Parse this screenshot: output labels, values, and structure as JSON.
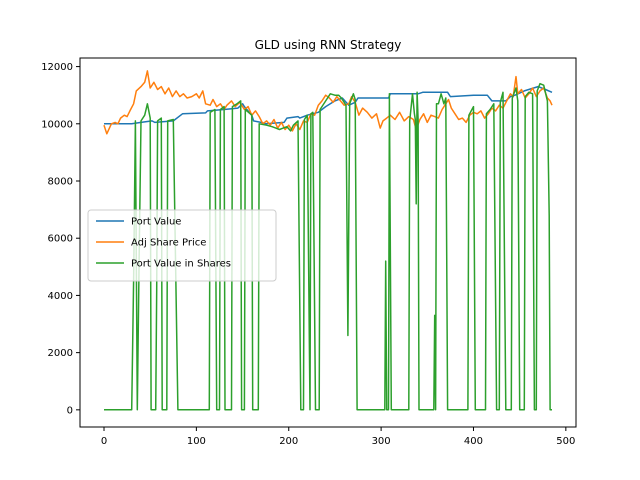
{
  "chart_data": {
    "type": "line",
    "title": "GLD using RNN Strategy",
    "xlabel": "",
    "ylabel": "",
    "xlim": [
      -26,
      511
    ],
    "ylim": [
      -600,
      12300
    ],
    "xticks": [
      0,
      100,
      200,
      300,
      400,
      500
    ],
    "yticks": [
      0,
      2000,
      4000,
      6000,
      8000,
      10000,
      12000
    ],
    "grid": false,
    "legend_placement": "center-left",
    "colors": {
      "port_value": "#1f77b4",
      "adj_share_price": "#ff7f0e",
      "port_value_in_shares": "#2ca02c"
    },
    "series": [
      {
        "name": "Port Value",
        "color": "#1f77b4",
        "points": [
          [
            0,
            10000
          ],
          [
            30,
            10000
          ],
          [
            40,
            10050
          ],
          [
            52,
            10100
          ],
          [
            55,
            10050
          ],
          [
            75,
            10100
          ],
          [
            85,
            10350
          ],
          [
            110,
            10380
          ],
          [
            112,
            10450
          ],
          [
            130,
            10500
          ],
          [
            145,
            10550
          ],
          [
            150,
            10700
          ],
          [
            152,
            10600
          ],
          [
            160,
            10300
          ],
          [
            162,
            10100
          ],
          [
            170,
            10050
          ],
          [
            175,
            10000
          ],
          [
            195,
            10050
          ],
          [
            198,
            10200
          ],
          [
            210,
            10250
          ],
          [
            212,
            10200
          ],
          [
            220,
            10300
          ],
          [
            232,
            10400
          ],
          [
            240,
            10600
          ],
          [
            250,
            10800
          ],
          [
            258,
            10900
          ],
          [
            265,
            10650
          ],
          [
            272,
            10750
          ],
          [
            275,
            10900
          ],
          [
            308,
            10900
          ],
          [
            310,
            11050
          ],
          [
            340,
            11050
          ],
          [
            345,
            11100
          ],
          [
            372,
            11100
          ],
          [
            375,
            10950
          ],
          [
            400,
            11000
          ],
          [
            415,
            11000
          ],
          [
            420,
            10800
          ],
          [
            435,
            10800
          ],
          [
            440,
            10950
          ],
          [
            445,
            11000
          ],
          [
            455,
            11150
          ],
          [
            470,
            11300
          ],
          [
            478,
            11200
          ],
          [
            485,
            11100
          ]
        ]
      },
      {
        "name": "Adj Share Price",
        "color": "#ff7f0e",
        "points": [
          [
            0,
            9950
          ],
          [
            3,
            9650
          ],
          [
            8,
            10000
          ],
          [
            12,
            10050
          ],
          [
            15,
            10000
          ],
          [
            18,
            10200
          ],
          [
            22,
            10300
          ],
          [
            25,
            10250
          ],
          [
            28,
            10450
          ],
          [
            32,
            10700
          ],
          [
            35,
            11150
          ],
          [
            40,
            11300
          ],
          [
            44,
            11450
          ],
          [
            47,
            11850
          ],
          [
            50,
            11250
          ],
          [
            54,
            11450
          ],
          [
            58,
            11200
          ],
          [
            62,
            11300
          ],
          [
            66,
            11050
          ],
          [
            70,
            11250
          ],
          [
            74,
            10950
          ],
          [
            78,
            11150
          ],
          [
            82,
            10950
          ],
          [
            86,
            11050
          ],
          [
            90,
            10900
          ],
          [
            95,
            10950
          ],
          [
            100,
            11050
          ],
          [
            103,
            10900
          ],
          [
            107,
            11150
          ],
          [
            110,
            10700
          ],
          [
            115,
            10650
          ],
          [
            118,
            10850
          ],
          [
            122,
            10600
          ],
          [
            126,
            10700
          ],
          [
            130,
            10500
          ],
          [
            133,
            10650
          ],
          [
            138,
            10800
          ],
          [
            142,
            10600
          ],
          [
            147,
            10750
          ],
          [
            152,
            10500
          ],
          [
            156,
            10600
          ],
          [
            160,
            10300
          ],
          [
            164,
            10450
          ],
          [
            168,
            10250
          ],
          [
            172,
            10000
          ],
          [
            176,
            10100
          ],
          [
            180,
            9950
          ],
          [
            184,
            10150
          ],
          [
            188,
            9850
          ],
          [
            192,
            10050
          ],
          [
            196,
            9800
          ],
          [
            200,
            9950
          ],
          [
            204,
            9750
          ],
          [
            208,
            10000
          ],
          [
            212,
            9800
          ],
          [
            216,
            10100
          ],
          [
            220,
            10050
          ],
          [
            224,
            10350
          ],
          [
            228,
            10300
          ],
          [
            232,
            10650
          ],
          [
            236,
            10800
          ],
          [
            240,
            11000
          ],
          [
            244,
            10900
          ],
          [
            248,
            10750
          ],
          [
            252,
            10950
          ],
          [
            256,
            10800
          ],
          [
            260,
            10650
          ],
          [
            265,
            10700
          ],
          [
            268,
            10950
          ],
          [
            272,
            10750
          ],
          [
            276,
            10300
          ],
          [
            280,
            10550
          ],
          [
            285,
            10400
          ],
          [
            290,
            10200
          ],
          [
            295,
            10350
          ],
          [
            299,
            9850
          ],
          [
            302,
            10100
          ],
          [
            306,
            10200
          ],
          [
            310,
            10300
          ],
          [
            315,
            10150
          ],
          [
            320,
            10400
          ],
          [
            325,
            10100
          ],
          [
            330,
            10250
          ],
          [
            335,
            10150
          ],
          [
            338,
            9800
          ],
          [
            342,
            10150
          ],
          [
            346,
            10350
          ],
          [
            350,
            10050
          ],
          [
            354,
            10300
          ],
          [
            358,
            10250
          ],
          [
            362,
            10200
          ],
          [
            366,
            10500
          ],
          [
            370,
            10700
          ],
          [
            373,
            10850
          ],
          [
            376,
            10550
          ],
          [
            380,
            10350
          ],
          [
            384,
            10150
          ],
          [
            388,
            10200
          ],
          [
            392,
            10050
          ],
          [
            396,
            10300
          ],
          [
            400,
            10400
          ],
          [
            404,
            10350
          ],
          [
            408,
            10450
          ],
          [
            412,
            10200
          ],
          [
            416,
            10350
          ],
          [
            420,
            10550
          ],
          [
            424,
            10450
          ],
          [
            428,
            10650
          ],
          [
            432,
            10550
          ],
          [
            436,
            10800
          ],
          [
            440,
            11050
          ],
          [
            443,
            10950
          ],
          [
            446,
            11650
          ],
          [
            448,
            11050
          ],
          [
            452,
            11200
          ],
          [
            456,
            10900
          ],
          [
            460,
            11050
          ],
          [
            464,
            11250
          ],
          [
            468,
            10950
          ],
          [
            472,
            11150
          ],
          [
            476,
            11250
          ],
          [
            480,
            10900
          ],
          [
            483,
            10800
          ],
          [
            485,
            10650
          ]
        ]
      },
      {
        "name": "Port Value in Shares",
        "color": "#2ca02c",
        "points": [
          [
            0,
            0
          ],
          [
            30,
            0
          ],
          [
            32,
            4500
          ],
          [
            34,
            10100
          ],
          [
            36,
            0
          ],
          [
            38,
            5200
          ],
          [
            40,
            10100
          ],
          [
            44,
            10300
          ],
          [
            47,
            10700
          ],
          [
            50,
            10200
          ],
          [
            51,
            0
          ],
          [
            56,
            0
          ],
          [
            57,
            4200
          ],
          [
            58,
            10100
          ],
          [
            62,
            10200
          ],
          [
            63,
            0
          ],
          [
            68,
            0
          ],
          [
            69,
            10100
          ],
          [
            75,
            10150
          ],
          [
            80,
            0
          ],
          [
            114,
            0
          ],
          [
            115,
            10400
          ],
          [
            120,
            10500
          ],
          [
            122,
            0
          ],
          [
            125,
            0
          ],
          [
            126,
            10500
          ],
          [
            130,
            10600
          ],
          [
            131,
            0
          ],
          [
            138,
            0
          ],
          [
            139,
            10600
          ],
          [
            144,
            10700
          ],
          [
            148,
            10800
          ],
          [
            149,
            0
          ],
          [
            152,
            0
          ],
          [
            153,
            10500
          ],
          [
            160,
            10300
          ],
          [
            161,
            0
          ],
          [
            167,
            0
          ],
          [
            168,
            10000
          ],
          [
            176,
            9950
          ],
          [
            182,
            9900
          ],
          [
            186,
            9850
          ],
          [
            190,
            9800
          ],
          [
            194,
            9850
          ],
          [
            198,
            9900
          ],
          [
            202,
            9750
          ],
          [
            205,
            9950
          ],
          [
            210,
            10100
          ],
          [
            213,
            0
          ],
          [
            216,
            0
          ],
          [
            217,
            10150
          ],
          [
            220,
            10300
          ],
          [
            223,
            0
          ],
          [
            224,
            10350
          ],
          [
            226,
            10400
          ],
          [
            229,
            0
          ],
          [
            233,
            0
          ],
          [
            234,
            10500
          ],
          [
            240,
            10800
          ],
          [
            245,
            11050
          ],
          [
            250,
            11000
          ],
          [
            254,
            11000
          ],
          [
            257,
            10900
          ],
          [
            262,
            10650
          ],
          [
            264,
            2600
          ],
          [
            266,
            10700
          ],
          [
            270,
            11050
          ],
          [
            272,
            10850
          ],
          [
            274,
            0
          ],
          [
            304,
            0
          ],
          [
            305,
            5200
          ],
          [
            306,
            0
          ],
          [
            308,
            0
          ],
          [
            309,
            11050
          ],
          [
            311,
            0
          ],
          [
            330,
            0
          ],
          [
            331,
            10100
          ],
          [
            334,
            11050
          ],
          [
            336,
            10350
          ],
          [
            337,
            10150
          ],
          [
            338,
            7200
          ],
          [
            339,
            11100
          ],
          [
            340,
            10150
          ],
          [
            341,
            0
          ],
          [
            357,
            0
          ],
          [
            358,
            3300
          ],
          [
            359,
            0
          ],
          [
            360,
            10700
          ],
          [
            362,
            10700
          ],
          [
            365,
            11050
          ],
          [
            368,
            10700
          ],
          [
            370,
            10900
          ],
          [
            372,
            0
          ],
          [
            394,
            0
          ],
          [
            395,
            10300
          ],
          [
            400,
            10600
          ],
          [
            402,
            0
          ],
          [
            413,
            0
          ],
          [
            414,
            10350
          ],
          [
            418,
            10500
          ],
          [
            422,
            10700
          ],
          [
            425,
            0
          ],
          [
            428,
            0
          ],
          [
            429,
            10750
          ],
          [
            432,
            11100
          ],
          [
            435,
            0
          ],
          [
            441,
            0
          ],
          [
            442,
            10900
          ],
          [
            446,
            11250
          ],
          [
            448,
            10800
          ],
          [
            450,
            0
          ],
          [
            455,
            0
          ],
          [
            456,
            10950
          ],
          [
            460,
            11100
          ],
          [
            464,
            11050
          ],
          [
            466,
            0
          ],
          [
            468,
            0
          ],
          [
            469,
            11150
          ],
          [
            472,
            11400
          ],
          [
            476,
            11350
          ],
          [
            480,
            10800
          ],
          [
            482,
            6800
          ],
          [
            483,
            0
          ],
          [
            485,
            0
          ]
        ]
      }
    ]
  }
}
